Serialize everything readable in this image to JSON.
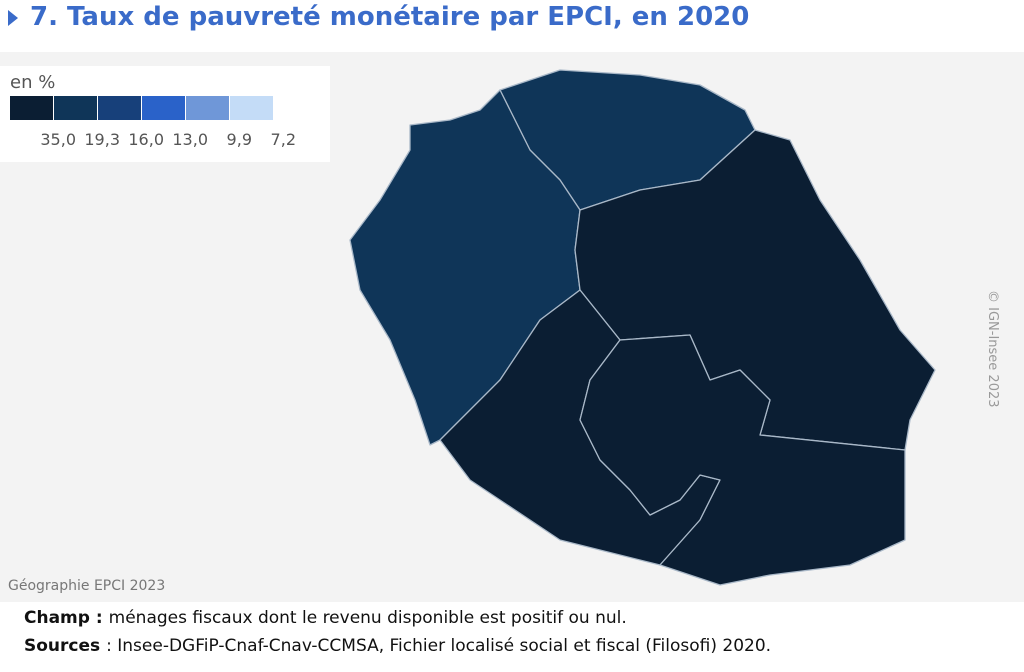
{
  "header": {
    "title": "7. Taux de pauvreté monétaire par EPCI, en 2020"
  },
  "legend": {
    "title": "en %",
    "colors": [
      "#0b1e33",
      "#0f3558",
      "#17407a",
      "#2a62c9",
      "#6f97d8",
      "#c4dcf7"
    ],
    "labels": [
      "35,0",
      "19,3",
      "16,0",
      "13,0",
      "9,9",
      "7,2"
    ]
  },
  "map": {
    "copyright": "© IGN-Insee 2023",
    "geography": "Géographie EPCI 2023"
  },
  "notes": [
    {
      "label": "Champ :",
      "text": "ménages fiscaux dont le revenu disponible est positif ou nul."
    },
    {
      "label": "Sources",
      "text": ": Insee-DGFiP-Cnaf-Cnav-CCMSA, Fichier localisé social et fiscal (Filosofi) 2020."
    }
  ]
}
